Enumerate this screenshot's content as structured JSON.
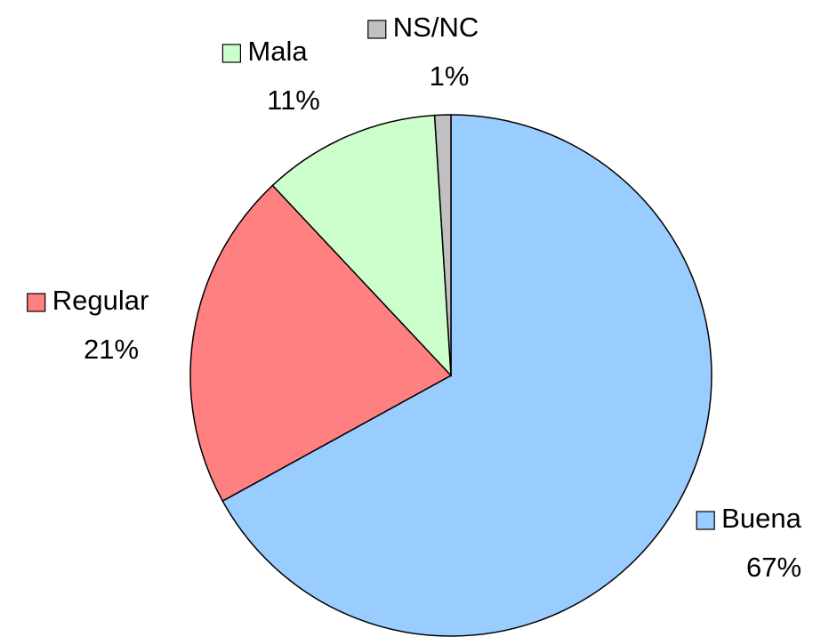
{
  "chart_data": {
    "type": "pie",
    "categories": [
      "Buena",
      "Regular",
      "Mala",
      "NS/NC"
    ],
    "values": [
      67,
      21,
      11,
      1
    ],
    "value_labels": [
      "67%",
      "21%",
      "11%",
      "1%"
    ],
    "colors": [
      "#99ccff",
      "#ff8080",
      "#ccffcc",
      "#c0c0c0"
    ],
    "start_angle": 0,
    "direction": "clockwise"
  }
}
